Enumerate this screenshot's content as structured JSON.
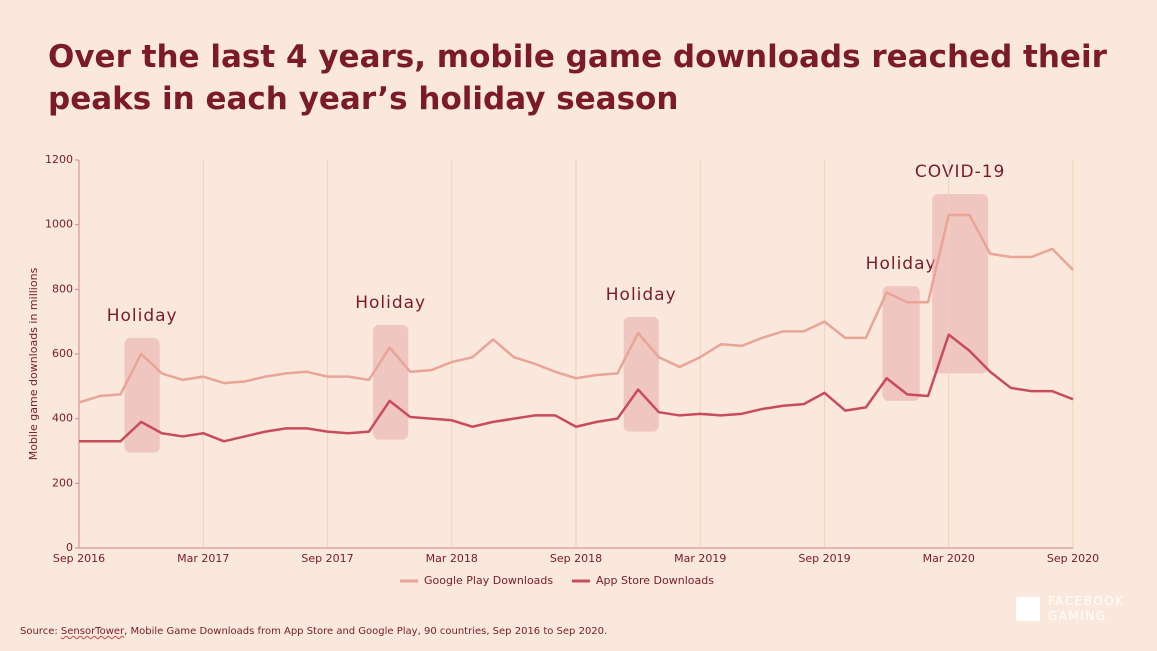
{
  "title": "Over the last 4 years, mobile game downloads reached their peaks in each year’s holiday season",
  "chart_data": {
    "type": "line",
    "y_label": "Mobile game downloads in millions",
    "categories": [
      "Sep 2016",
      null,
      null,
      null,
      null,
      null,
      "Mar 2017",
      null,
      null,
      null,
      null,
      null,
      "Sep 2017",
      null,
      null,
      null,
      null,
      null,
      "Mar 2018",
      null,
      null,
      null,
      null,
      null,
      "Sep 2018",
      null,
      null,
      null,
      null,
      null,
      "Mar 2019",
      null,
      null,
      null,
      null,
      null,
      "Sep 2019",
      null,
      null,
      null,
      null,
      null,
      "Mar 2020",
      null,
      null,
      null,
      null,
      null,
      "Sep 2020"
    ],
    "series": [
      {
        "name": "Google Play Downloads",
        "color": "#e8a598",
        "values": [
          450,
          470,
          475,
          600,
          540,
          520,
          530,
          510,
          515,
          530,
          540,
          545,
          530,
          530,
          520,
          620,
          545,
          550,
          575,
          590,
          645,
          590,
          570,
          545,
          525,
          535,
          540,
          665,
          590,
          560,
          590,
          630,
          625,
          650,
          670,
          670,
          700,
          650,
          650,
          790,
          760,
          760,
          1030,
          1030,
          910,
          900,
          900,
          925,
          860
        ]
      },
      {
        "name": "App Store Downloads",
        "color": "#c94c5c",
        "values": [
          330,
          330,
          330,
          390,
          355,
          345,
          355,
          330,
          345,
          360,
          370,
          370,
          360,
          355,
          360,
          455,
          405,
          400,
          395,
          375,
          390,
          400,
          410,
          410,
          375,
          390,
          400,
          490,
          420,
          410,
          415,
          410,
          415,
          430,
          440,
          445,
          480,
          425,
          435,
          525,
          475,
          470,
          660,
          610,
          545,
          495,
          485,
          485,
          460
        ]
      }
    ],
    "annotations": [
      "Holiday",
      "Holiday",
      "Holiday",
      "Holiday",
      "COVID-19"
    ],
    "ylim": [
      0,
      1200
    ],
    "yticks": [
      0,
      200,
      400,
      600,
      800,
      1000,
      1200
    ],
    "grid": true,
    "legend": "bottom"
  },
  "source": {
    "prefix": "Source: ",
    "link": "SensorTower",
    "rest": ", Mobile Game Downloads from App Store and Google Play, 90 countries, Sep 2016 to Sep 2020."
  },
  "logo": [
    "FACEBOOK",
    "GAMING"
  ]
}
